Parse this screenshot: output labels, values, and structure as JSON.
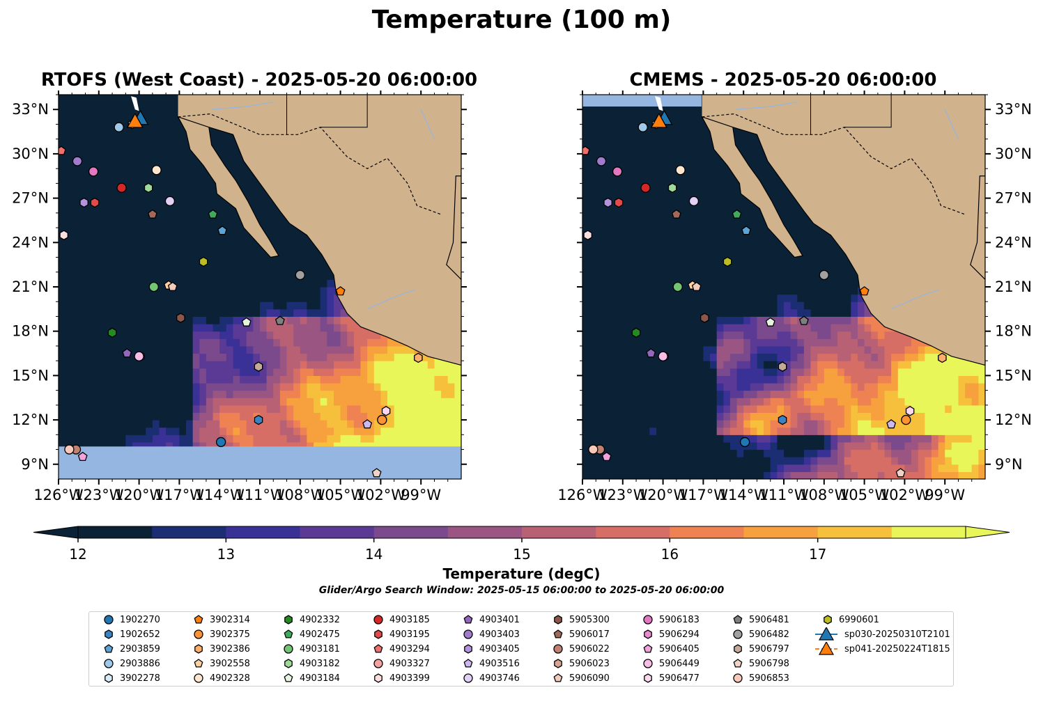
{
  "title": "Temperature (100 m)",
  "panels": [
    {
      "id": "rtofs",
      "title": "RTOFS (West Coast) - 2025-05-20 06:00:00"
    },
    {
      "id": "cmems",
      "title": "CMEMS - 2025-05-20 06:00:00"
    }
  ],
  "colorbar": {
    "label": "Temperature (degC)",
    "ticks": [
      "12",
      "13",
      "14",
      "15",
      "16",
      "17"
    ],
    "colors": [
      "#0b2236",
      "#1c2e73",
      "#3a3197",
      "#5b3a96",
      "#7b4a8c",
      "#9a5582",
      "#b96174",
      "#d66e66",
      "#ee8252",
      "#f7a03e",
      "#f6bf3c",
      "#e9f65a"
    ],
    "under_color": "#0b2236",
    "over_color": "#e9f65a"
  },
  "search_window": "Glider/Argo Search Window: 2025-05-15 06:00:00 to 2025-05-20 06:00:00",
  "chart_data": [
    {
      "type": "heatmap",
      "title": "RTOFS (West Coast) - 2025-05-20 06:00:00",
      "variable": "Temperature (100 m)",
      "units": "degC",
      "xlim": [
        -126,
        -96
      ],
      "ylim": [
        8,
        34
      ],
      "xticks": [
        "126°W",
        "123°W",
        "120°W",
        "117°W",
        "114°W",
        "111°W",
        "108°W",
        "105°W",
        "102°W",
        "99°W"
      ],
      "yticks": [
        "9°N",
        "12°N",
        "15°N",
        "18°N",
        "21°N",
        "24°N",
        "27°N",
        "30°N",
        "33°N"
      ],
      "ytick_side": "left"
    },
    {
      "type": "heatmap",
      "title": "CMEMS - 2025-05-20 06:00:00",
      "variable": "Temperature (100 m)",
      "units": "degC",
      "xlim": [
        -126,
        -96
      ],
      "ylim": [
        8,
        34
      ],
      "xticks": [
        "126°W",
        "123°W",
        "120°W",
        "117°W",
        "114°W",
        "111°W",
        "108°W",
        "105°W",
        "102°W",
        "99°W"
      ],
      "yticks": [
        "9°N",
        "12°N",
        "15°N",
        "18°N",
        "21°N",
        "24°N",
        "27°N",
        "30°N",
        "33°N"
      ],
      "ytick_side": "right"
    }
  ],
  "floats": [
    {
      "id": "1902270",
      "shape": "circle",
      "color": "#1f77b4",
      "lon": -113.9,
      "lat": 10.5
    },
    {
      "id": "1902652",
      "shape": "hexagon",
      "color": "#3a83c4",
      "lon": -111.1,
      "lat": 12.0
    },
    {
      "id": "2903859",
      "shape": "pentagon",
      "color": "#5da3d6",
      "lon": -113.8,
      "lat": 24.8
    },
    {
      "id": "2903886",
      "shape": "circle",
      "color": "#9ec9ea",
      "lon": -121.5,
      "lat": 31.8
    },
    {
      "id": "3902278",
      "shape": "hexagon",
      "color": "#d6ecf8",
      "lon": -120.5,
      "lat": 32.0
    },
    {
      "id": "3902314",
      "shape": "pentagon",
      "color": "#ff7f0e",
      "lon": -105.0,
      "lat": 20.7
    },
    {
      "id": "3902375",
      "shape": "circle",
      "color": "#ff9233",
      "lon": -101.9,
      "lat": 12.0
    },
    {
      "id": "3902386",
      "shape": "hexagon",
      "color": "#fdae6b",
      "lon": -99.2,
      "lat": 16.2
    },
    {
      "id": "3902558",
      "shape": "pentagon",
      "color": "#fdd0a2",
      "lon": -117.8,
      "lat": 21.1
    },
    {
      "id": "4902328",
      "shape": "circle",
      "color": "#fee6ce",
      "lon": -118.7,
      "lat": 28.9
    },
    {
      "id": "4902332",
      "shape": "hexagon",
      "color": "#238b22",
      "lon": -122.0,
      "lat": 17.9
    },
    {
      "id": "4902475",
      "shape": "pentagon",
      "color": "#41ab5d",
      "lon": -114.5,
      "lat": 25.9
    },
    {
      "id": "4903181",
      "shape": "circle",
      "color": "#74c476",
      "lon": -118.9,
      "lat": 21.0
    },
    {
      "id": "4903182",
      "shape": "hexagon",
      "color": "#a1d99b",
      "lon": -119.3,
      "lat": 27.7
    },
    {
      "id": "4903184",
      "shape": "pentagon",
      "color": "#e5f5e0",
      "lon": -112.0,
      "lat": 18.6
    },
    {
      "id": "4903185",
      "shape": "circle",
      "color": "#d62728",
      "lon": -121.3,
      "lat": 27.7
    },
    {
      "id": "4903195",
      "shape": "hexagon",
      "color": "#e34a4a",
      "lon": -123.3,
      "lat": 26.7
    },
    {
      "id": "4903294",
      "shape": "pentagon",
      "color": "#ef6e6e",
      "lon": -125.8,
      "lat": 30.2
    },
    {
      "id": "4903327",
      "shape": "circle",
      "color": "#f4a3a3",
      "lon": -123.4,
      "lat": 28.8
    },
    {
      "id": "4903399",
      "shape": "hexagon",
      "color": "#fcdede",
      "lon": -125.6,
      "lat": 24.5
    },
    {
      "id": "4903401",
      "shape": "pentagon",
      "color": "#9467bd",
      "lon": -120.9,
      "lat": 16.5
    },
    {
      "id": "4903403",
      "shape": "circle",
      "color": "#a07ccc",
      "lon": -124.6,
      "lat": 29.5
    },
    {
      "id": "4903405",
      "shape": "hexagon",
      "color": "#b394dc",
      "lon": -124.1,
      "lat": 26.7
    },
    {
      "id": "4903516",
      "shape": "pentagon",
      "color": "#cdb7ee",
      "lon": -103.0,
      "lat": 11.7
    },
    {
      "id": "4903746",
      "shape": "circle",
      "color": "#e2d1f5",
      "lon": -117.7,
      "lat": 26.8
    },
    {
      "id": "5905300",
      "shape": "hexagon",
      "color": "#8c564b",
      "lon": -116.9,
      "lat": 18.9
    },
    {
      "id": "5906017",
      "shape": "pentagon",
      "color": "#a0695c",
      "lon": -119.0,
      "lat": 25.9
    },
    {
      "id": "5906022",
      "shape": "circle",
      "color": "#bf8272",
      "lon": -124.7,
      "lat": 10.0
    },
    {
      "id": "5906023",
      "shape": "hexagon",
      "color": "#d8a491",
      "lon": -111.1,
      "lat": 15.6
    },
    {
      "id": "5906090",
      "shape": "pentagon",
      "color": "#f2cbbb",
      "lon": -117.5,
      "lat": 21.0
    },
    {
      "id": "5906183",
      "shape": "circle",
      "color": "#e377c2",
      "lon": -123.4,
      "lat": 28.8
    },
    {
      "id": "5906294",
      "shape": "hexagon",
      "color": "#e98ad0",
      "lon": -119.9,
      "lat": 16.3
    },
    {
      "id": "5906405",
      "shape": "pentagon",
      "color": "#f1a3dc",
      "lon": -124.2,
      "lat": 9.5
    },
    {
      "id": "5906449",
      "shape": "circle",
      "color": "#f7bde7",
      "lon": -120.0,
      "lat": 16.3
    },
    {
      "id": "5906477",
      "shape": "hexagon",
      "color": "#fbd7f0",
      "lon": -101.6,
      "lat": 12.6
    },
    {
      "id": "5906481",
      "shape": "pentagon",
      "color": "#7f7f7f",
      "lon": -109.5,
      "lat": 18.7
    },
    {
      "id": "5906482",
      "shape": "circle",
      "color": "#a0a0a0",
      "lon": -108.0,
      "lat": 21.8
    },
    {
      "id": "5906797",
      "shape": "hexagon",
      "color": "#c4aa98",
      "lon": -111.1,
      "lat": 15.6
    },
    {
      "id": "5906798",
      "shape": "pentagon",
      "color": "#f1d2c6",
      "lon": -102.3,
      "lat": 8.4
    },
    {
      "id": "5906853",
      "shape": "circle",
      "color": "#f8c8b8",
      "lon": -125.2,
      "lat": 10.0
    },
    {
      "id": "6990601",
      "shape": "hexagon",
      "color": "#bcbd22",
      "lon": -115.2,
      "lat": 22.7
    }
  ],
  "gliders": [
    {
      "id": "sp030-20250310T2101",
      "color": "#1f77b4",
      "lon": -119.9,
      "lat": 32.4
    },
    {
      "id": "sp041-20250224T1815",
      "color": "#ff7f0e",
      "lon": -120.3,
      "lat": 32.2
    }
  ]
}
